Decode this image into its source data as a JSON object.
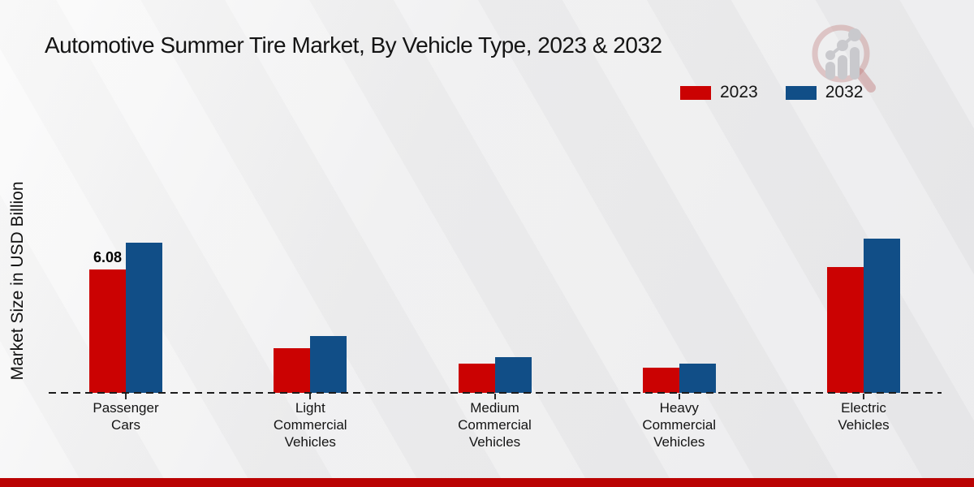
{
  "title": "Automotive Summer Tire Market, By Vehicle Type, 2023 & 2032",
  "ylabel": "Market Size in USD Billion",
  "logo_name": "magnifier-bar-chart-logo",
  "footer": {
    "band_color": "#ba0303"
  },
  "chart_data": {
    "type": "bar",
    "title": "Automotive Summer Tire Market, By Vehicle Type, 2023 & 2032",
    "xlabel": "",
    "ylabel": "Market Size in USD Billion",
    "categories": [
      "Passenger Cars",
      "Light Commercial Vehicles",
      "Medium Commercial Vehicles",
      "Heavy Commercial Vehicles",
      "Electric Vehicles"
    ],
    "series": [
      {
        "name": "2023",
        "color": "#cb0202",
        "values": [
          6.08,
          2.2,
          1.45,
          1.25,
          6.2
        ]
      },
      {
        "name": "2032",
        "color": "#114e87",
        "values": [
          7.4,
          2.8,
          1.75,
          1.45,
          7.6
        ]
      }
    ],
    "value_labels": [
      {
        "series": "2023",
        "category": "Passenger Cars",
        "text": "6.08"
      }
    ],
    "unit": "USD Billion",
    "baseline": 0,
    "grid": false,
    "baseline_style": "dashed",
    "legend_position": "top-right"
  }
}
